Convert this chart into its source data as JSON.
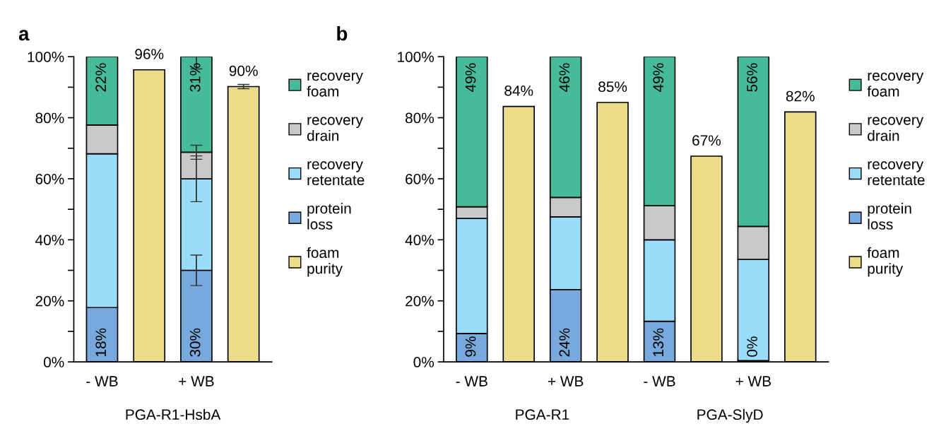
{
  "chart_data": [
    {
      "type": "bar",
      "title": "a",
      "stacked": true,
      "legend": "right",
      "categories": [
        "- WB",
        null,
        "+ WB",
        null
      ],
      "ylim": [
        0,
        100
      ],
      "yticks": [
        {
          "value": 0,
          "label": "0%"
        },
        {
          "value": 10,
          "label": null
        },
        {
          "value": 20,
          "label": "20%"
        },
        {
          "value": 30,
          "label": null
        },
        {
          "value": 40,
          "label": "40%"
        },
        {
          "value": 50,
          "label": null
        },
        {
          "value": 60,
          "label": "60%"
        },
        {
          "value": 70,
          "label": null
        },
        {
          "value": 80,
          "label": "80%"
        },
        {
          "value": 90,
          "label": null
        },
        {
          "value": 100,
          "label": "100%"
        }
      ],
      "series": [
        {
          "name": "protein loss",
          "color": "#77a9dc",
          "values": [
            17.8,
            null,
            30,
            null
          ],
          "value_labels": [
            "18%",
            null,
            "30%",
            null
          ],
          "errors": [
            null,
            null,
            5,
            null
          ]
        },
        {
          "name": "recovery retentate",
          "color": "#9addfb",
          "values": [
            50.4,
            null,
            30,
            null
          ],
          "errors": [
            null,
            null,
            7.5,
            null
          ]
        },
        {
          "name": "recovery drain",
          "color": "#c9c9c9",
          "values": [
            9.4,
            null,
            8.7,
            null
          ],
          "errors": [
            null,
            null,
            2.3,
            null
          ]
        },
        {
          "name": "recovery foam",
          "color": "#45bb98",
          "values": [
            22.4,
            null,
            31.3,
            null
          ],
          "value_labels": [
            "22%",
            null,
            "31%",
            null
          ],
          "errors": [
            null,
            null,
            4,
            null
          ]
        },
        {
          "name": "foam purity",
          "color": "#ebdc8a",
          "values": [
            null,
            95.7,
            null,
            90.2
          ],
          "value_labels": [
            null,
            "96%",
            null,
            "90%"
          ],
          "errors": [
            null,
            null,
            null,
            0.7
          ]
        }
      ],
      "annotations": [
        "PGA-R1-HsbA"
      ]
    },
    {
      "type": "bar",
      "title": "b",
      "stacked": true,
      "legend": "right",
      "categories": [
        "- WB",
        null,
        "+ WB",
        null,
        "- WB",
        null,
        "+ WB",
        null
      ],
      "ylim": [
        0,
        100
      ],
      "yticks": [
        {
          "value": 0,
          "label": "0%"
        },
        {
          "value": 10,
          "label": null
        },
        {
          "value": 20,
          "label": "20%"
        },
        {
          "value": 30,
          "label": null
        },
        {
          "value": 40,
          "label": "40%"
        },
        {
          "value": 50,
          "label": null
        },
        {
          "value": 60,
          "label": "60%"
        },
        {
          "value": 70,
          "label": null
        },
        {
          "value": 80,
          "label": "80%"
        },
        {
          "value": 90,
          "label": null
        },
        {
          "value": 100,
          "label": "100%"
        }
      ],
      "series": [
        {
          "name": "protein loss",
          "color": "#77a9dc",
          "values": [
            9.3,
            null,
            23.7,
            null,
            13.3,
            null,
            0.4,
            null
          ],
          "value_labels": [
            "9%",
            null,
            "24%",
            null,
            "13%",
            null,
            "0%",
            null
          ]
        },
        {
          "name": "recovery retentate",
          "color": "#9addfb",
          "values": [
            37.7,
            null,
            23.8,
            null,
            26.7,
            null,
            33.2,
            null
          ]
        },
        {
          "name": "recovery drain",
          "color": "#c9c9c9",
          "values": [
            3.8,
            null,
            6.4,
            null,
            11.2,
            null,
            10.8,
            null
          ]
        },
        {
          "name": "recovery foam",
          "color": "#45bb98",
          "values": [
            49.2,
            null,
            46.1,
            null,
            48.8,
            null,
            55.6,
            null
          ],
          "value_labels": [
            "49%",
            null,
            "46%",
            null,
            "49%",
            null,
            "56%",
            null
          ]
        },
        {
          "name": "foam purity",
          "color": "#ebdc8a",
          "values": [
            null,
            83.7,
            null,
            85,
            null,
            67.4,
            null,
            81.9
          ],
          "value_labels": [
            null,
            "84%",
            null,
            "85%",
            null,
            "67%",
            null,
            "82%"
          ]
        }
      ],
      "annotations": [
        "PGA-R1",
        "PGA-SlyD"
      ]
    }
  ]
}
